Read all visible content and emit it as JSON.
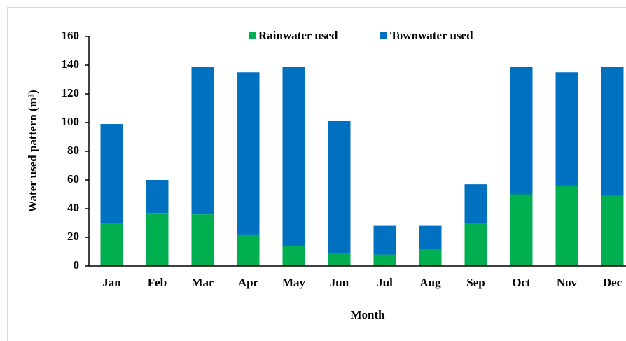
{
  "chart_data": {
    "type": "stacked-bar",
    "y_label": "Water used pattern (m³)",
    "x_label": "Month",
    "categories": [
      "Jan",
      "Feb",
      "Mar",
      "Apr",
      "May",
      "Jun",
      "Jul",
      "Aug",
      "Sep",
      "Oct",
      "Nov",
      "Dec"
    ],
    "series": [
      {
        "name": "Rainwater used",
        "color": "#00b050",
        "values": [
          30,
          37,
          36,
          22,
          14,
          9,
          8,
          12,
          30,
          50,
          56,
          49
        ]
      },
      {
        "name": "Townwater used",
        "color": "#0070c0",
        "values": [
          69,
          23,
          103,
          113,
          125,
          92,
          20,
          16,
          27,
          89,
          79,
          90
        ]
      }
    ],
    "ylim": [
      0,
      160
    ],
    "yticks": [
      0,
      20,
      40,
      60,
      80,
      100,
      120,
      140,
      160
    ],
    "legend": "top",
    "grid": false
  }
}
